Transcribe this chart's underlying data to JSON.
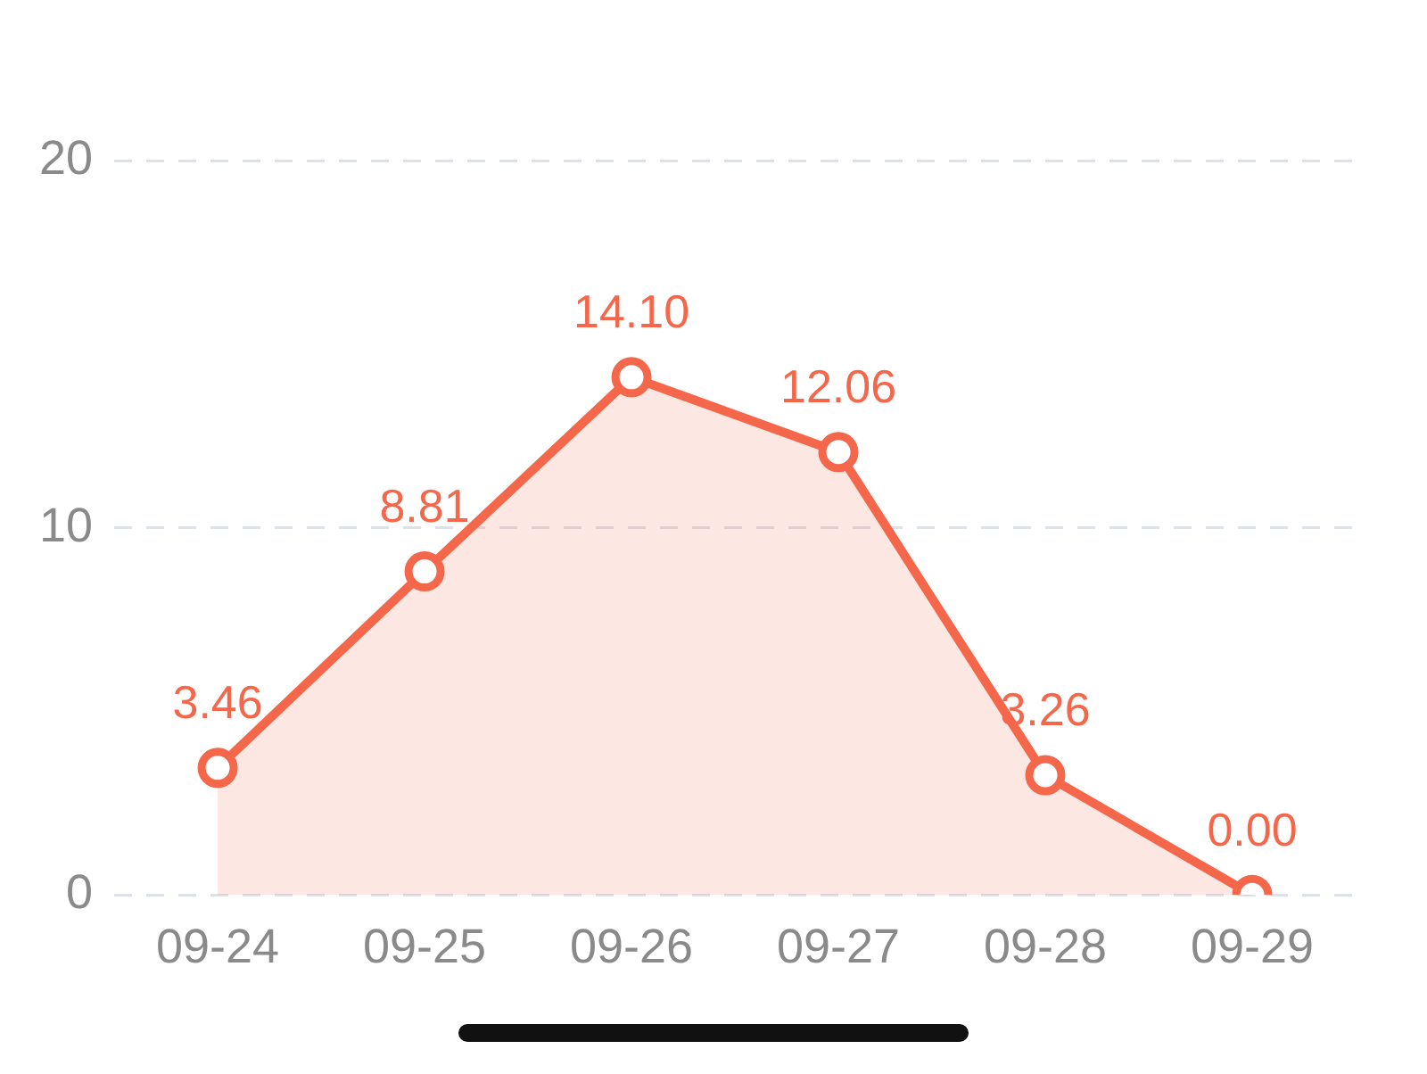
{
  "chart_data": {
    "type": "area",
    "categories": [
      "09-24",
      "09-25",
      "09-26",
      "09-27",
      "09-28",
      "09-29"
    ],
    "series": [
      {
        "color": "#f4674a",
        "values": [
          3.46,
          8.81,
          14.1,
          12.06,
          3.26,
          0
        ],
        "value_labels": [
          "3.46",
          "8.81",
          "14.10",
          "12.06",
          "3.26",
          "0.00"
        ]
      }
    ],
    "ylim": [
      0,
      20
    ],
    "yticks": [
      0,
      10,
      20
    ],
    "grid": "y",
    "legend": false,
    "marker": "circle",
    "line_style": "solid"
  }
}
